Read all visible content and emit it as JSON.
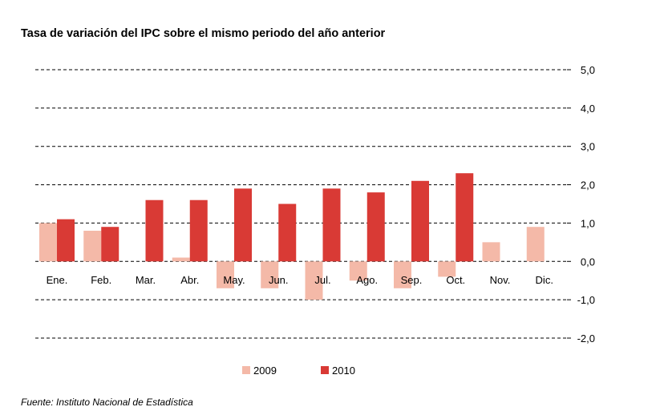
{
  "chart_data": {
    "type": "bar",
    "title": "Tasa de variación del IPC sobre el mismo periodo del año anterior",
    "categories": [
      "Ene.",
      "Feb.",
      "Mar.",
      "Abr.",
      "May.",
      "Jun.",
      "Jul.",
      "Ago.",
      "Sep.",
      "Oct.",
      "Nov.",
      "Dic."
    ],
    "series": [
      {
        "name": "2009",
        "color": "#f4b9a8",
        "values": [
          1.0,
          0.8,
          0.0,
          0.1,
          -0.7,
          -0.7,
          -1.0,
          -0.5,
          -0.7,
          -0.4,
          0.5,
          0.9
        ]
      },
      {
        "name": "2010",
        "color": "#d93a35",
        "values": [
          1.1,
          0.9,
          1.6,
          1.6,
          1.9,
          1.5,
          1.9,
          1.8,
          2.1,
          2.3,
          null,
          null
        ]
      }
    ],
    "ylim": [
      -2.0,
      5.0
    ],
    "y_ticks": [
      5.0,
      4.0,
      3.0,
      2.0,
      1.0,
      0.0,
      -1.0,
      -2.0
    ],
    "y_tick_labels": [
      "5,0",
      "4,0",
      "3,0",
      "2,0",
      "1,0",
      "0,0",
      "-1,0",
      "-2,0"
    ],
    "y_axis_side": "right",
    "grid": "dashed horizontal",
    "legend_position": "bottom-center",
    "xlabel": "",
    "ylabel": ""
  },
  "source": "Fuente: Instituto Nacional de Estadística"
}
